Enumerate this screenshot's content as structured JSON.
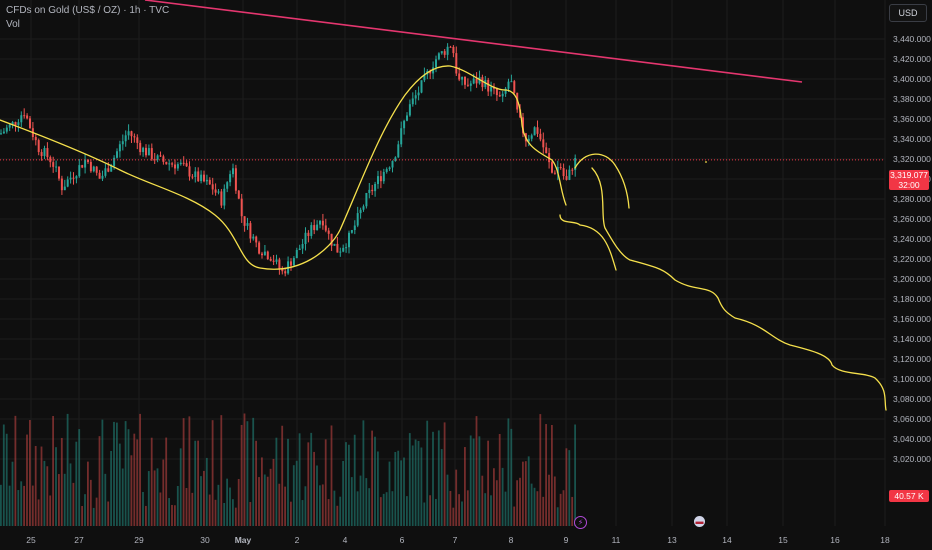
{
  "header": {
    "title": "CFDs on Gold (US$ / OZ) · 1h · TVC",
    "vol_label": "Vol",
    "currency_button": "USD"
  },
  "price_badge": {
    "value": "3,319.077",
    "countdown": "32:00"
  },
  "volume_badge": {
    "value": "40.57 K"
  },
  "events": {
    "flash_icon": "lightning-icon",
    "flag_icon": "us-flag-icon"
  },
  "colors": {
    "background": "#0f0f0f",
    "bull": "#26a69a",
    "bear": "#ef5350",
    "trendline": "#e4366f",
    "drawing": "#f5e04c",
    "price_line": "#f23645"
  },
  "chart_data": {
    "type": "candlestick",
    "symbol": "CFDs on Gold (US$ / OZ)",
    "interval": "1h",
    "y_axis": {
      "ticks": [
        "3,440.000",
        "3,420.000",
        "3,400.000",
        "3,380.000",
        "3,360.000",
        "3,340.000",
        "3,320.000",
        "3,300.000",
        "3,280.000",
        "3,260.000",
        "3,240.000",
        "3,220.000",
        "3,200.000",
        "3,180.000",
        "3,160.000",
        "3,140.000",
        "3,120.000",
        "3,100.000",
        "3,080.000",
        "3,060.000",
        "3,040.000",
        "3,020.000"
      ],
      "range": [
        3012,
        3453
      ]
    },
    "x_axis": {
      "ticks": [
        "25",
        "27",
        "29",
        "30",
        "May",
        "2",
        "4",
        "6",
        "7",
        "8",
        "9",
        "11",
        "13",
        "14",
        "15",
        "16",
        "18"
      ]
    },
    "last_price": 3319.077,
    "price_path": [
      [
        0,
        3345
      ],
      [
        14,
        3356
      ],
      [
        24,
        3368
      ],
      [
        38,
        3332
      ],
      [
        52,
        3318
      ],
      [
        62,
        3292
      ],
      [
        76,
        3308
      ],
      [
        86,
        3320
      ],
      [
        100,
        3300
      ],
      [
        112,
        3318
      ],
      [
        128,
        3348
      ],
      [
        142,
        3330
      ],
      [
        160,
        3318
      ],
      [
        180,
        3314
      ],
      [
        196,
        3302
      ],
      [
        212,
        3292
      ],
      [
        222,
        3278
      ],
      [
        232,
        3315
      ],
      [
        242,
        3262
      ],
      [
        258,
        3232
      ],
      [
        272,
        3222
      ],
      [
        282,
        3206
      ],
      [
        296,
        3225
      ],
      [
        310,
        3248
      ],
      [
        322,
        3262
      ],
      [
        330,
        3240
      ],
      [
        338,
        3228
      ],
      [
        350,
        3242
      ],
      [
        366,
        3280
      ],
      [
        380,
        3302
      ],
      [
        394,
        3322
      ],
      [
        408,
        3370
      ],
      [
        420,
        3390
      ],
      [
        434,
        3418
      ],
      [
        446,
        3430
      ],
      [
        452,
        3436
      ],
      [
        458,
        3398
      ],
      [
        468,
        3394
      ],
      [
        480,
        3400
      ],
      [
        492,
        3388
      ],
      [
        502,
        3378
      ],
      [
        510,
        3402
      ],
      [
        518,
        3362
      ],
      [
        526,
        3340
      ],
      [
        536,
        3352
      ],
      [
        544,
        3330
      ],
      [
        552,
        3306
      ],
      [
        560,
        3314
      ],
      [
        566,
        3296
      ],
      [
        574,
        3318
      ],
      [
        580,
        3319
      ]
    ],
    "volume_badge": "40.57 K",
    "drawings": {
      "trendline": {
        "from": [
          "start",
          3465
        ],
        "to": [
          "15",
          3402
        ]
      },
      "projection": "hand-drawn downward path to ~3,116 by 18"
    }
  }
}
